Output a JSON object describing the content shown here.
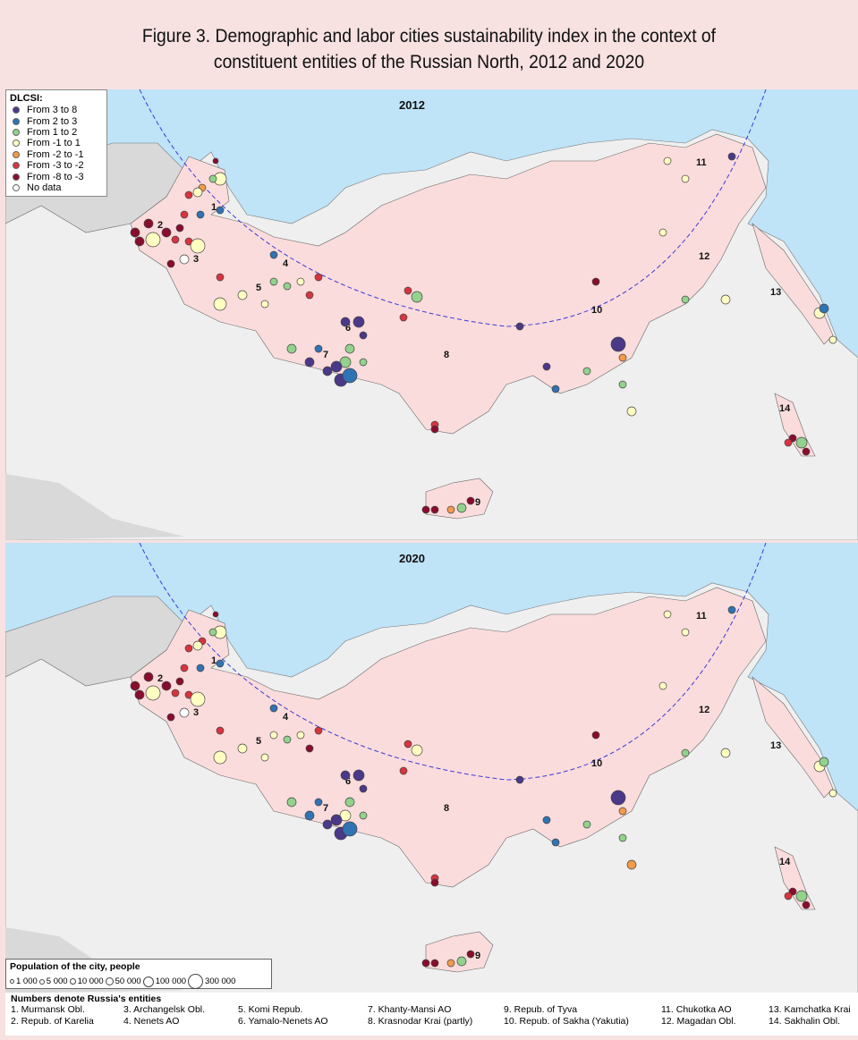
{
  "title_line1": "Figure 3. Demographic and labor cities sustainability index in the context of",
  "title_line2": "constituent entities of the Russian North, 2012 and 2020",
  "maps": [
    {
      "year": "2012"
    },
    {
      "year": "2020"
    }
  ],
  "legend": {
    "title": "DLCSI:",
    "items": [
      {
        "label": "From 3 to 8",
        "color": "#4a3889"
      },
      {
        "label": "From 2 to 3",
        "color": "#2f73b3"
      },
      {
        "label": "From 1 to 2",
        "color": "#92d28c"
      },
      {
        "label": "From -1 to 1",
        "color": "#ffffc2"
      },
      {
        "label": "From -2 to -1",
        "color": "#f39a4c"
      },
      {
        "label": "From -3 to -2",
        "color": "#d8343f"
      },
      {
        "label": "From -8 to -3",
        "color": "#8a0c2c"
      },
      {
        "label": "No data",
        "color": "#ffffff"
      }
    ]
  },
  "population_legend": {
    "title": "Population of the city, people",
    "items": [
      "1 000",
      "5 000",
      "10 000",
      "50 000",
      "100 000",
      "300 000"
    ]
  },
  "entities": {
    "title": "Numbers denote Russia's entities",
    "items": [
      "1. Murmansk Obl.",
      "3. Archangelsk Obl.",
      "5. Komi Repub.",
      "7. Khanty-Mansi AO",
      "9. Repub. of Tyva",
      "11. Chukotka AO",
      "13. Kamchatka Krai",
      "2. Repub. of Karelia",
      "4. Nenets AO",
      "6. Yamalo-Nenets AO",
      "8. Krasnodar Krai (partly)",
      "10. Repub. of Sakha (Yakutia)",
      "12. Magadan Obl.",
      "14. Sakhalin Obl."
    ],
    "region_numbers": [
      "1",
      "2",
      "3",
      "4",
      "5",
      "6",
      "7",
      "8",
      "9",
      "10",
      "11",
      "12",
      "13",
      "14"
    ]
  },
  "colors": {
    "sea": "#bfe3f7",
    "land": "#efefef",
    "other_land": "#d9d9d9",
    "north": "#fbdcdc",
    "arc": "#3b3bd6"
  }
}
